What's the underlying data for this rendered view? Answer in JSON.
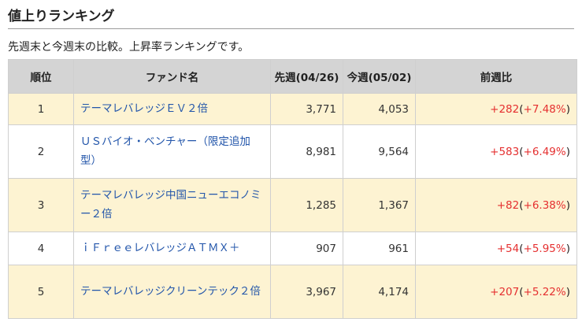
{
  "section": {
    "title": "値上りランキング",
    "description": "先週末と今週末の比較。上昇率ランキングです。"
  },
  "table": {
    "headers": {
      "rank": "順位",
      "fund": "ファンド名",
      "prev": "先週(04/26)",
      "curr": "今週(05/02)",
      "change": "前週比"
    },
    "rows": [
      {
        "rank": "1",
        "fund": "テーマレバレッジＥＶ２倍",
        "prev": "3,771",
        "curr": "4,053",
        "diff": "+282",
        "pct": "+7.48%"
      },
      {
        "rank": "2",
        "fund": "ＵＳバイオ・ベンチャー（限定追加型）",
        "prev": "8,981",
        "curr": "9,564",
        "diff": "+583",
        "pct": "+6.49%"
      },
      {
        "rank": "3",
        "fund": "テーマレバレッジ中国ニューエコノミー２倍",
        "prev": "1,285",
        "curr": "1,367",
        "diff": "+82",
        "pct": "+6.38%"
      },
      {
        "rank": "4",
        "fund": "ｉＦｒｅｅレバレッジＡＴＭＸ＋",
        "prev": "907",
        "curr": "961",
        "diff": "+54",
        "pct": "+5.95%"
      },
      {
        "rank": "5",
        "fund": "テーマレバレッジクリーンテック２倍",
        "prev": "3,967",
        "curr": "4,174",
        "diff": "+207",
        "pct": "+5.22%"
      }
    ]
  },
  "colors": {
    "header_bg": "#d4d4d4",
    "row_highlight": "#fdf3d2",
    "link": "#2255aa",
    "positive": "#e53030"
  }
}
